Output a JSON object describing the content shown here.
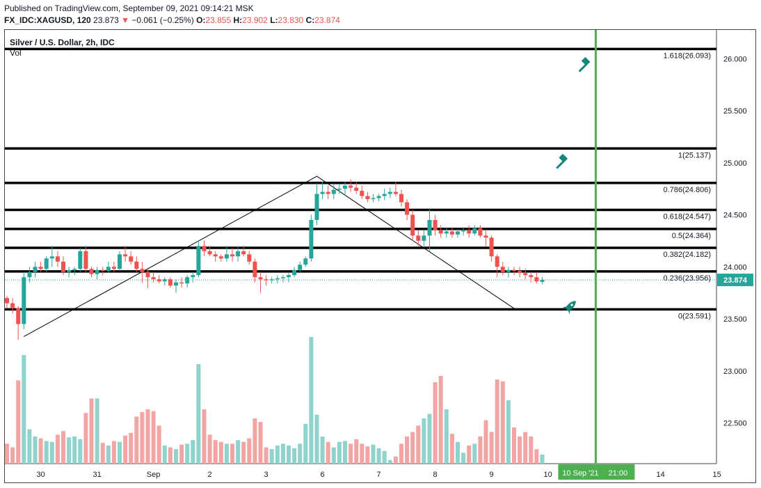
{
  "header": {
    "published": "Published on TradingView.com, September 09, 2021 09:14:21 MSK",
    "symbol": "FX_IDC:XAGUSD, 120",
    "last": "23.873",
    "change_arrow": "▼",
    "change": "−0.061 (−0.25%)",
    "o_label": "O:",
    "o_val": "23.855",
    "h_label": "H:",
    "h_val": "23.902",
    "l_label": "L:",
    "l_val": "23.830",
    "c_label": "C:",
    "c_val": "23.874"
  },
  "chart_data": {
    "type": "candlestick",
    "title": "Silver / U.S. Dollar, 2h, IDC",
    "volume_label": "Vol",
    "last_price": "23.874",
    "y_ticks": [
      "26.000",
      "25.500",
      "25.000",
      "24.500",
      "24.000",
      "23.500",
      "23.000",
      "22.500"
    ],
    "y_tick_values": [
      26.0,
      25.5,
      25.0,
      24.5,
      24.0,
      23.5,
      23.0,
      22.5
    ],
    "ylim": [
      22.1,
      26.2
    ],
    "x_ticks": [
      {
        "label": "30",
        "bar": 6
      },
      {
        "label": "31",
        "bar": 16
      },
      {
        "label": "Sep",
        "bar": 26
      },
      {
        "label": "2",
        "bar": 36
      },
      {
        "label": "3",
        "bar": 46
      },
      {
        "label": "6",
        "bar": 56
      },
      {
        "label": "7",
        "bar": 66
      },
      {
        "label": "8",
        "bar": 76
      },
      {
        "label": "9",
        "bar": 86
      },
      {
        "label": "10",
        "bar": 96
      },
      {
        "label": "14",
        "bar": 116
      },
      {
        "label": "15",
        "bar": 126
      }
    ],
    "x_highlight": {
      "label": "10 Sep '21",
      "time": "21:00",
      "bar": 104.5
    },
    "candles": [
      [
        23.7,
        23.72,
        23.6,
        23.65
      ],
      [
        23.65,
        23.7,
        23.55,
        23.6
      ],
      [
        23.6,
        23.62,
        23.3,
        23.45
      ],
      [
        23.45,
        23.95,
        23.4,
        23.9
      ],
      [
        23.9,
        24.0,
        23.85,
        23.95
      ],
      [
        23.95,
        24.05,
        23.9,
        24.0
      ],
      [
        24.0,
        24.05,
        23.95,
        23.98
      ],
      [
        23.98,
        24.1,
        23.95,
        24.08
      ],
      [
        24.08,
        24.2,
        24.0,
        24.1
      ],
      [
        24.1,
        24.15,
        24.0,
        24.05
      ],
      [
        24.05,
        24.1,
        23.92,
        23.95
      ],
      [
        23.95,
        24.0,
        23.9,
        23.97
      ],
      [
        23.97,
        24.0,
        23.92,
        23.98
      ],
      [
        23.98,
        24.18,
        23.95,
        24.15
      ],
      [
        24.15,
        24.2,
        23.95,
        23.98
      ],
      [
        23.98,
        24.0,
        23.9,
        23.93
      ],
      [
        23.93,
        24.0,
        23.88,
        23.97
      ],
      [
        23.97,
        24.0,
        23.92,
        23.96
      ],
      [
        23.96,
        24.05,
        23.94,
        24.0
      ],
      [
        24.0,
        24.05,
        23.95,
        23.98
      ],
      [
        23.98,
        24.15,
        23.96,
        24.12
      ],
      [
        24.12,
        24.2,
        24.05,
        24.1
      ],
      [
        24.1,
        24.15,
        24.02,
        24.05
      ],
      [
        24.05,
        24.1,
        23.95,
        23.98
      ],
      [
        23.98,
        24.05,
        23.85,
        23.95
      ],
      [
        23.95,
        23.98,
        23.8,
        23.9
      ],
      [
        23.9,
        23.95,
        23.85,
        23.88
      ],
      [
        23.88,
        23.92,
        23.84,
        23.86
      ],
      [
        23.86,
        23.9,
        23.82,
        23.88
      ],
      [
        23.88,
        23.9,
        23.8,
        23.82
      ],
      [
        23.82,
        23.88,
        23.75,
        23.85
      ],
      [
        23.85,
        23.9,
        23.8,
        23.84
      ],
      [
        23.84,
        23.92,
        23.8,
        23.9
      ],
      [
        23.9,
        23.95,
        23.85,
        23.92
      ],
      [
        23.92,
        24.25,
        23.9,
        24.2
      ],
      [
        24.2,
        24.25,
        24.1,
        24.15
      ],
      [
        24.15,
        24.2,
        24.1,
        24.12
      ],
      [
        24.12,
        24.15,
        24.05,
        24.1
      ],
      [
        24.1,
        24.12,
        24.05,
        24.08
      ],
      [
        24.08,
        24.2,
        24.05,
        24.12
      ],
      [
        24.12,
        24.18,
        24.05,
        24.1
      ],
      [
        24.1,
        24.2,
        24.05,
        24.15
      ],
      [
        24.15,
        24.2,
        24.1,
        24.12
      ],
      [
        24.12,
        24.15,
        24.02,
        24.05
      ],
      [
        24.05,
        24.08,
        23.85,
        23.9
      ],
      [
        23.9,
        23.95,
        23.75,
        23.88
      ],
      [
        23.88,
        23.92,
        23.82,
        23.87
      ],
      [
        23.87,
        23.9,
        23.84,
        23.88
      ],
      [
        23.88,
        23.92,
        23.84,
        23.89
      ],
      [
        23.89,
        23.92,
        23.85,
        23.9
      ],
      [
        23.9,
        23.94,
        23.85,
        23.92
      ],
      [
        23.92,
        24.0,
        23.9,
        23.97
      ],
      [
        23.97,
        24.05,
        23.95,
        24.02
      ],
      [
        24.02,
        24.1,
        24.0,
        24.08
      ],
      [
        24.08,
        24.5,
        24.05,
        24.45
      ],
      [
        24.45,
        24.8,
        24.4,
        24.7
      ],
      [
        24.7,
        24.82,
        24.65,
        24.72
      ],
      [
        24.72,
        24.78,
        24.65,
        24.7
      ],
      [
        24.7,
        24.8,
        24.65,
        24.74
      ],
      [
        24.74,
        24.8,
        24.7,
        24.75
      ],
      [
        24.75,
        24.82,
        24.68,
        24.78
      ],
      [
        24.78,
        24.84,
        24.72,
        24.76
      ],
      [
        24.76,
        24.82,
        24.7,
        24.73
      ],
      [
        24.73,
        24.78,
        24.65,
        24.68
      ],
      [
        24.68,
        24.72,
        24.62,
        24.65
      ],
      [
        24.65,
        24.7,
        24.62,
        24.66
      ],
      [
        24.66,
        24.7,
        24.63,
        24.68
      ],
      [
        24.68,
        24.75,
        24.64,
        24.7
      ],
      [
        24.7,
        24.76,
        24.66,
        24.72
      ],
      [
        24.72,
        24.82,
        24.68,
        24.7
      ],
      [
        24.7,
        24.74,
        24.58,
        24.62
      ],
      [
        24.62,
        24.65,
        24.45,
        24.5
      ],
      [
        24.5,
        24.55,
        24.25,
        24.3
      ],
      [
        24.3,
        24.35,
        24.2,
        24.25
      ],
      [
        24.25,
        24.35,
        24.2,
        24.3
      ],
      [
        24.3,
        24.55,
        24.15,
        24.45
      ],
      [
        24.45,
        24.5,
        24.3,
        24.35
      ],
      [
        24.35,
        24.4,
        24.28,
        24.32
      ],
      [
        24.32,
        24.38,
        24.28,
        24.34
      ],
      [
        24.34,
        24.38,
        24.28,
        24.31
      ],
      [
        24.31,
        24.36,
        24.28,
        24.34
      ],
      [
        24.34,
        24.38,
        24.3,
        24.35
      ],
      [
        24.35,
        24.4,
        24.28,
        24.32
      ],
      [
        24.32,
        24.4,
        24.3,
        24.37
      ],
      [
        24.37,
        24.4,
        24.28,
        24.3
      ],
      [
        24.3,
        24.35,
        24.2,
        24.28
      ],
      [
        24.28,
        24.3,
        24.05,
        24.1
      ],
      [
        24.1,
        24.12,
        23.9,
        24.0
      ],
      [
        24.0,
        24.05,
        23.92,
        23.95
      ],
      [
        23.95,
        24.0,
        23.9,
        23.97
      ],
      [
        23.97,
        24.0,
        23.92,
        23.96
      ],
      [
        23.96,
        24.0,
        23.9,
        23.94
      ],
      [
        23.94,
        23.98,
        23.88,
        23.92
      ],
      [
        23.92,
        23.95,
        23.85,
        23.9
      ],
      [
        23.9,
        23.95,
        23.84,
        23.86
      ],
      [
        23.855,
        23.902,
        23.83,
        23.874
      ]
    ],
    "volumes": [
      22,
      18,
      92,
      120,
      38,
      30,
      28,
      25,
      24,
      32,
      36,
      29,
      30,
      27,
      56,
      72,
      72,
      23,
      20,
      25,
      24,
      31,
      34,
      52,
      57,
      60,
      58,
      42,
      20,
      18,
      16,
      21,
      22,
      26,
      110,
      60,
      32,
      26,
      24,
      22,
      22,
      26,
      24,
      28,
      50,
      46,
      18,
      16,
      20,
      22,
      20,
      17,
      22,
      44,
      140,
      54,
      30,
      24,
      18,
      24,
      25,
      22,
      27,
      22,
      19,
      21,
      17,
      14,
      4,
      8,
      22,
      30,
      35,
      42,
      50,
      55,
      90,
      97,
      60,
      33,
      24,
      12,
      20,
      22,
      30,
      48,
      35,
      93,
      91,
      70,
      40,
      30,
      35,
      30,
      16,
      10
    ],
    "fib_levels": [
      {
        "ratio": "1.618",
        "price": "26.093",
        "value": 26.093
      },
      {
        "ratio": "1",
        "price": "25.137",
        "value": 25.137
      },
      {
        "ratio": "0.786",
        "price": "24.806",
        "value": 24.806
      },
      {
        "ratio": "0.618",
        "price": "24.547",
        "value": 24.547
      },
      {
        "ratio": "0.5",
        "price": "24.364",
        "value": 24.364
      },
      {
        "ratio": "0.382",
        "price": "24.182",
        "value": 24.182
      },
      {
        "ratio": "0.236",
        "price": "23.956",
        "value": 23.956
      },
      {
        "ratio": "0",
        "price": "23.591",
        "value": 23.591
      }
    ],
    "trend_points": [
      [
        3,
        23.33
      ],
      [
        55,
        24.87
      ],
      [
        90,
        23.6
      ]
    ],
    "vertical_marker_bar": 104.5,
    "markers": [
      {
        "icon": "gavel-icon",
        "bar": 103,
        "price": 25.95
      },
      {
        "icon": "gavel-icon",
        "bar": 99,
        "price": 25.02
      },
      {
        "icon": "rocket-icon",
        "bar": 100,
        "price": 23.62
      }
    ],
    "colors": {
      "up": "#26a69a",
      "down": "#ef5350",
      "up_vol": "#8fd3cc",
      "down_vol": "#f3a5a3",
      "marker": "#4caf50",
      "last_price": "#26a69a",
      "fib_line": "#000000",
      "icon": "#14877a"
    }
  }
}
